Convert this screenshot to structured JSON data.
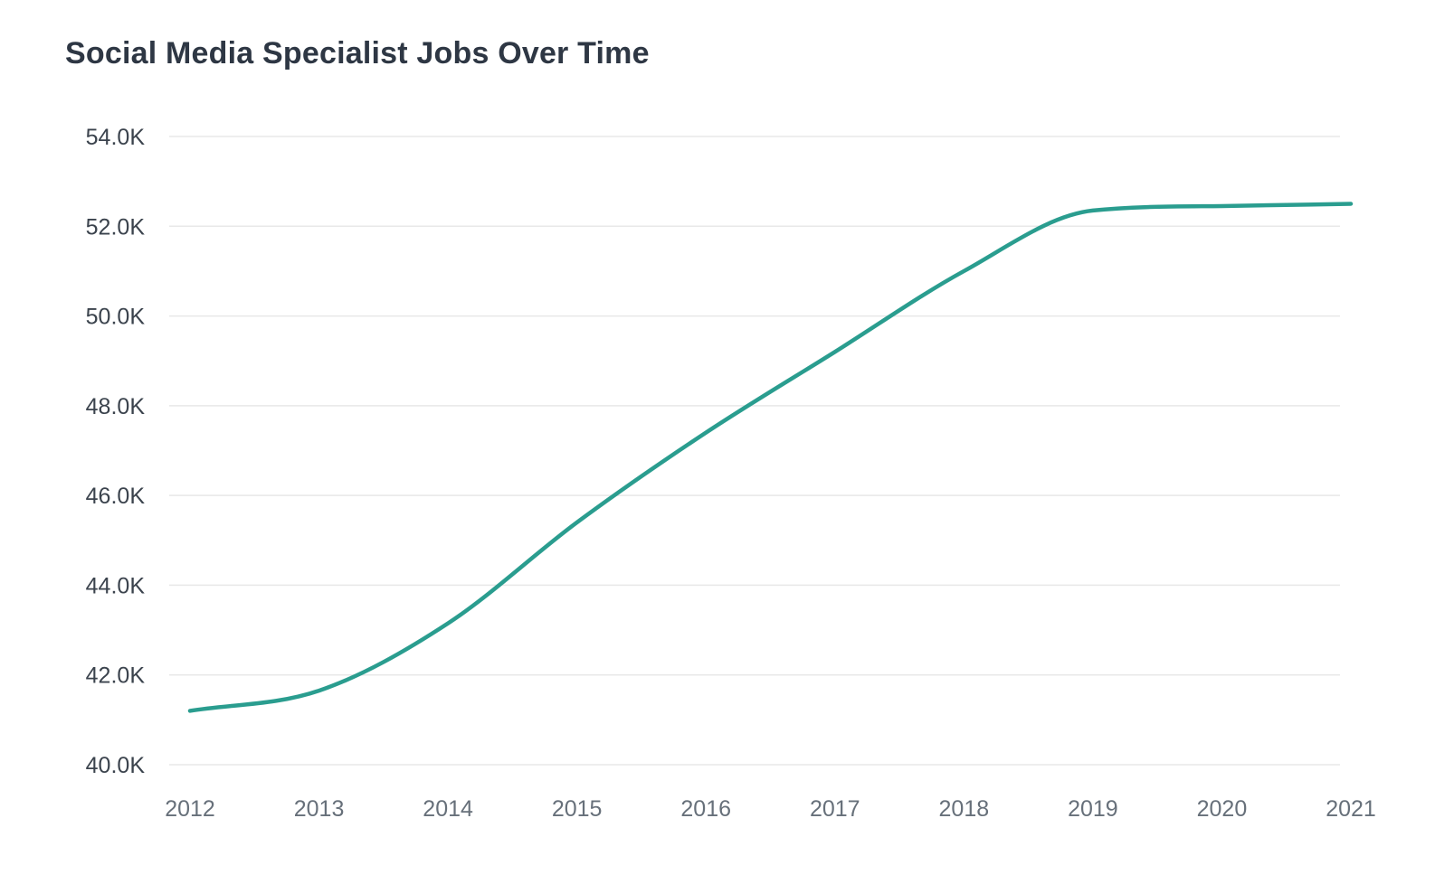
{
  "page": {
    "background_color": "#ffffff"
  },
  "chart_data": {
    "type": "line",
    "title": "Social Media Specialist Jobs Over Time",
    "xlabel": "",
    "ylabel": "",
    "x": [
      "2012",
      "2013",
      "2014",
      "2015",
      "2016",
      "2017",
      "2018",
      "2019",
      "2020",
      "2021"
    ],
    "series": [
      {
        "name": "Social Media Specialist Jobs",
        "values": [
          41200,
          41650,
          43150,
          45400,
          47400,
          49200,
          51000,
          52350,
          52450,
          52500
        ]
      }
    ],
    "ylim": [
      40000,
      54000
    ],
    "y_ticks": [
      {
        "value": 54000,
        "label": "54.0K"
      },
      {
        "value": 52000,
        "label": "52.0K"
      },
      {
        "value": 50000,
        "label": "50.0K"
      },
      {
        "value": 48000,
        "label": "48.0K"
      },
      {
        "value": 46000,
        "label": "46.0K"
      },
      {
        "value": 44000,
        "label": "44.0K"
      },
      {
        "value": 42000,
        "label": "42.0K"
      },
      {
        "value": 40000,
        "label": "40.0K"
      }
    ],
    "grid": "horizontal",
    "legend_position": "none",
    "line_color": "#2a9d8f",
    "grid_color": "#e8e8e8",
    "title_color": "#2e3744",
    "y_label_color": "#3b434d",
    "x_label_color": "#67707a",
    "line_width": 4.5
  }
}
